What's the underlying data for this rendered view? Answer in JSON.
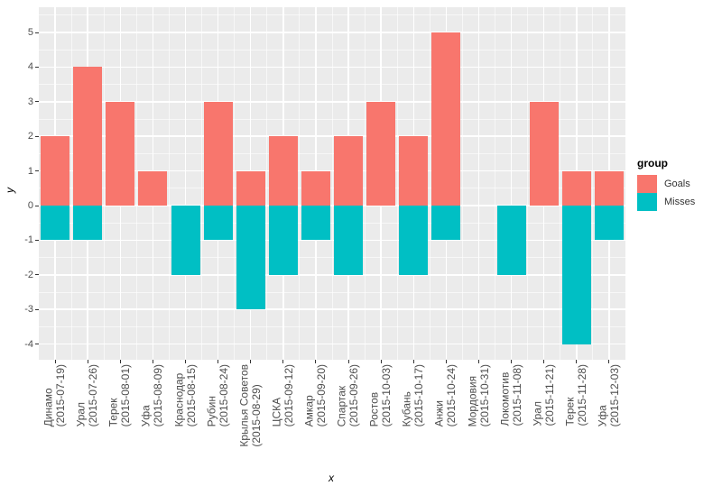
{
  "chart_data": {
    "type": "bar",
    "title": "",
    "xlabel": "x",
    "ylabel": "y",
    "legend_title": "group",
    "legend_position": "right",
    "grid": "on",
    "panel_bg": "#EBEBEB",
    "grid_color": "#FFFFFF",
    "axis_text_color": "#4d4d4d",
    "ylim": [
      -4.45,
      5.7
    ],
    "y_ticks": [
      5,
      4,
      3,
      2,
      1,
      0,
      -1,
      -2,
      -3,
      -4
    ],
    "categories": [
      {
        "team": "Динамо",
        "date": "(2015-07-19)"
      },
      {
        "team": "Урал",
        "date": "(2015-07-26)"
      },
      {
        "team": "Терек",
        "date": "(2015-08-01)"
      },
      {
        "team": "Уфа",
        "date": "(2015-08-09)"
      },
      {
        "team": "Краснодар",
        "date": "(2015-08-15)"
      },
      {
        "team": "Рубин",
        "date": "(2015-08-24)"
      },
      {
        "team": "Крылья Советов",
        "date": "(2015-08-29)"
      },
      {
        "team": "ЦСКА",
        "date": "(2015-09-12)"
      },
      {
        "team": "Амкар",
        "date": "(2015-09-20)"
      },
      {
        "team": "Спартак",
        "date": "(2015-09-26)"
      },
      {
        "team": "Ростов",
        "date": "(2015-10-03)"
      },
      {
        "team": "Кубань",
        "date": "(2015-10-17)"
      },
      {
        "team": "Анжи",
        "date": "(2015-10-24)"
      },
      {
        "team": "Мордовия",
        "date": "(2015-10-31)"
      },
      {
        "team": "Локомотив",
        "date": "(2015-11-08)"
      },
      {
        "team": "Урал",
        "date": "(2015-11-21)"
      },
      {
        "team": "Терек",
        "date": "(2015-11-28)"
      },
      {
        "team": "Уфа",
        "date": "(2015-12-03)"
      }
    ],
    "series": [
      {
        "name": "Goals",
        "color": "#F8766D",
        "values": [
          2,
          4,
          3,
          1,
          0,
          3,
          1,
          2,
          1,
          2,
          3,
          2,
          5,
          0,
          0,
          3,
          1,
          1
        ]
      },
      {
        "name": "Misses",
        "color": "#00BFC4",
        "values": [
          -1,
          -1,
          0,
          0,
          -2,
          -1,
          -3,
          -2,
          -1,
          -2,
          0,
          -2,
          -1,
          0,
          -2,
          0,
          -4,
          -1
        ]
      }
    ]
  }
}
